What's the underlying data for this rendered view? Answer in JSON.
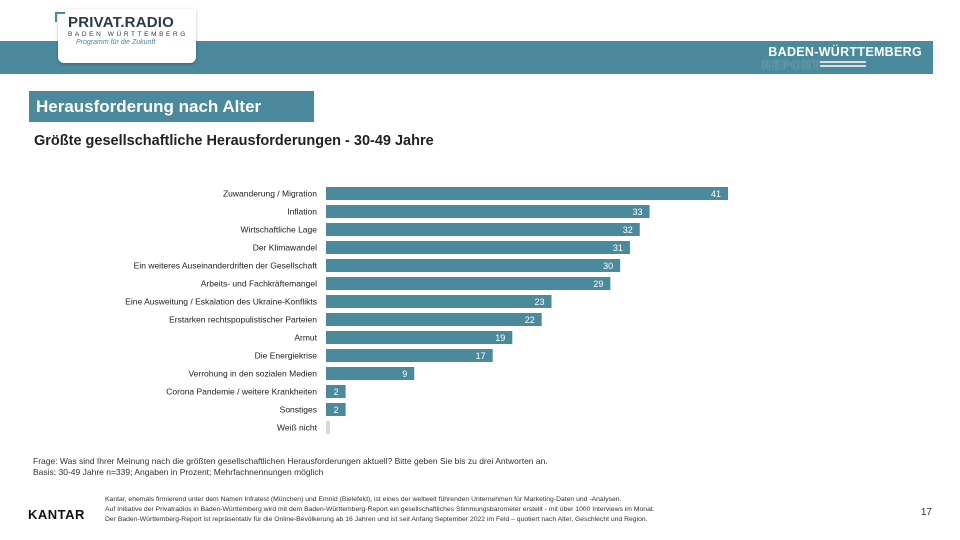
{
  "header": {
    "logo_main": "PRIVAT.RADIO",
    "logo_sub": "BADEN WÜRTTEMBERG",
    "logo_tag": "Programm für die Zukunft",
    "report_title": "BADEN-WÜRTTEMBERG",
    "report_sub": "REPORT"
  },
  "page": {
    "title": "Herausforderung nach Alter",
    "subtitle": "Größte gesellschaftliche Herausforderungen - 30-49 Jahre"
  },
  "footer": {
    "question": "Frage: Was sind Ihrer Meinung nach die größten gesellschaftlichen Herausforderungen aktuell? Bitte geben Sie bis zu drei Antworten an.",
    "basis": "Basis: 30-49 Jahre n=339; Angaben in Prozent; Mehrfachnennungen möglich",
    "brand": "KANTAR",
    "line1": "Kantar, ehemals firmierend unter dem Namen Infratest (München) und Emnid (Bielefeld), ist eines der weltweit führenden Unternehmen für Marketing-Daten und -Analysen.",
    "line2": "Auf Initiative der Privatradios in Baden-Württemberg wird mit dem Baden-Württemberg-Report ein gesellschaftliches Stimmungsbarometer erstellt - mit über 1000 Interviews im Monat.",
    "line3": "Der Baden-Württemberg-Report ist repräsentativ für die Online-Bevölkerung ab 16 Jahren und ist seit Anfang September 2022 im Feld – quotiert nach Alter, Geschlecht und Region.",
    "page_number": "17"
  },
  "colors": {
    "accent": "#4a8a9c",
    "bar_empty": "#d9d9d9"
  },
  "chart_data": {
    "type": "bar",
    "orientation": "horizontal",
    "categories": [
      "Zuwanderung / Migration",
      "Inflation",
      "Wirtschaftliche Lage",
      "Der Klimawandel",
      "Ein weiteres Auseinanderdriften der Gesellschaft",
      "Arbeits- und Fachkräftemangel",
      "Eine Ausweitung / Eskalation des Ukraine-Konflikts",
      "Erstarken rechtspopulistischer Parteien",
      "Armut",
      "Die Energiekrise",
      "Verrohung in den sozialen Medien",
      "Corona Pandemie / weitere Krankheiten",
      "Sonstiges",
      "Weiß nicht"
    ],
    "values": [
      41,
      33,
      32,
      31,
      30,
      29,
      23,
      22,
      19,
      17,
      9,
      2,
      2,
      0
    ],
    "value_labels": [
      "41",
      "33",
      "32",
      "31",
      "30",
      "29",
      "23",
      "22",
      "19",
      "17",
      "9",
      "2",
      "2",
      ""
    ],
    "xlim": [
      0,
      41
    ],
    "grid": false,
    "legend": "none"
  }
}
